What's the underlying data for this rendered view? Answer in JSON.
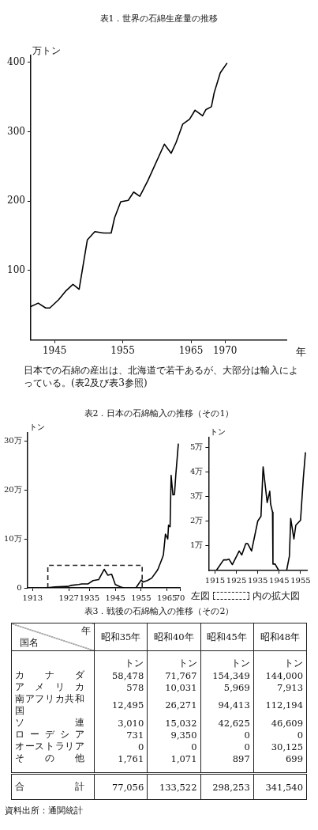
{
  "chart_data": [
    {
      "type": "line",
      "title": "表1．世界の石綿生産量の推移",
      "ylabel": "万トン",
      "xlabel": "年",
      "xlim": [
        1941.5,
        1979
      ],
      "xticks": [
        1945,
        1955,
        1965,
        1970
      ],
      "ylim": [
        0,
        410
      ],
      "yticks": [
        100,
        200,
        300,
        400
      ],
      "series": [
        {
          "color": "#000000",
          "x": [
            1941.5,
            1942.6,
            1943.7,
            1944.3,
            1945.6,
            1946.6,
            1947.7,
            1948.6,
            1949.8,
            1950.9,
            1952.2,
            1953.3,
            1953.8,
            1954.7,
            1955.8,
            1956.6,
            1957.5,
            1958.7,
            1961.1,
            1962.1,
            1962.8,
            1963.8,
            1964.8,
            1965.6,
            1966.7,
            1967.2,
            1968.0,
            1968.4,
            1969.3,
            1970.3
          ],
          "values": [
            48,
            53,
            46,
            46,
            58,
            70,
            80,
            73,
            144,
            156,
            154,
            154,
            176,
            199,
            201,
            213,
            207,
            230,
            282,
            269,
            284,
            311,
            318,
            331,
            323,
            332,
            336,
            356,
            385,
            399
          ]
        }
      ],
      "annotations": [
        "日本での石綿の産出は、北海道で若干あるが、大部分は輸入によっている。(表2及び表3参照)"
      ]
    },
    {
      "type": "line",
      "title": "表2．日本の石綿輸入の推移（その1）",
      "ylabel": "トン",
      "xlim": [
        1911,
        1970
      ],
      "xticks": [
        1913,
        1927,
        1935,
        1945,
        1955,
        1965,
        {
          "value": 1970,
          "label": "70"
        }
      ],
      "ylim": [
        0,
        31.7
      ],
      "yticks": [
        0,
        {
          "value": 10,
          "label": "10万"
        },
        {
          "value": 20,
          "label": "20万"
        },
        {
          "value": 30,
          "label": "30万"
        }
      ],
      "series": [
        {
          "color": "#000000",
          "x": [
            1918.3,
            1921.5,
            1926.6,
            1927.8,
            1930.8,
            1932,
            1934.4,
            1936.4,
            1938.6,
            1940.7,
            1942.1,
            1943.6,
            1945,
            1947,
            1948.3,
            1950.6,
            1953,
            1955,
            1955.8,
            1957.4,
            1959.1,
            1960.9,
            1961.5,
            1962.9,
            1963.6,
            1964.4,
            1965.3,
            1965.6,
            1966.2,
            1966.6,
            1967.3,
            1967.9,
            1968.4,
            1969.4
          ],
          "values": [
            0,
            0.2,
            0.3,
            0.5,
            0.7,
            0.8,
            0.8,
            1.5,
            1.7,
            3.8,
            2.6,
            2.8,
            0.7,
            0.2,
            0,
            null,
            0,
            1.6,
            1.2,
            1.5,
            2,
            3.3,
            3.8,
            5.7,
            6.7,
            11,
            10,
            12.8,
            12.5,
            23,
            19,
            19.1,
            23,
            29.5
          ]
        },
        {
          "color": "#222222",
          "line_style": "dashed",
          "x": [
            1918.9,
            1918.9,
            1955.4,
            1955.4
          ],
          "values": [
            0,
            4.6,
            4.6,
            0
          ]
        }
      ]
    },
    {
      "type": "line",
      "ylabel": "トン",
      "xlim": [
        1912,
        1958
      ],
      "xticks": [
        1915,
        1925,
        1935,
        1945,
        1955
      ],
      "ylim": [
        0,
        5.4
      ],
      "yticks": [
        {
          "value": 1,
          "label": "1万"
        },
        {
          "value": 2,
          "label": "2万"
        },
        {
          "value": 3,
          "label": "3万"
        },
        {
          "value": 4,
          "label": "4万"
        },
        {
          "value": 5,
          "label": "5万"
        }
      ],
      "series": [
        {
          "color": "#000000",
          "x": [
            1915.6,
            1919,
            1920.6,
            1921.5,
            1923.1,
            1926.3,
            1927.5,
            1929.4,
            1930.3,
            1932.1,
            1935,
            1936.5,
            1937.5,
            1939.4,
            1940.6,
            1941,
            1941.9,
            1942.1,
            1943.1,
            1944.8,
            1946.6,
            1948.5,
            1949.8,
            1950.4,
            1951.9,
            1952.8,
            1955,
            1956.3,
            1957.3
          ],
          "values": [
            0,
            0.43,
            0.43,
            0.46,
            0.24,
            0.79,
            0.63,
            1.09,
            1.09,
            0.79,
            2.01,
            2.2,
            4.21,
            2.76,
            3.22,
            2.7,
            2.37,
            0.26,
            0.26,
            0,
            null,
            0,
            0.59,
            2.11,
            1.28,
            1.84,
            2.04,
            3.75,
            4.8
          ]
        }
      ],
      "annotations": [
        "左図",
        "内の拡大図"
      ]
    },
    {
      "type": "other",
      "title": "表3．戦後の石綿輸入の推移（その2）",
      "xlabel": "国名",
      "legend_title": "年",
      "ylabel": "トン",
      "categories": [
        "カナダ",
        "アメリカ",
        "南アフリカ共和国",
        "ソ連",
        "ローデシア",
        "オーストラリア",
        "その他",
        "合計"
      ],
      "series": [
        {
          "name": "昭和35年",
          "values": [
            58478,
            578,
            12495,
            3010,
            731,
            0,
            1761,
            77056
          ],
          "value_labels": [
            "58,478",
            "578",
            "12,495",
            "3,010",
            "731",
            "0",
            "1,761",
            "77,056"
          ]
        },
        {
          "name": "昭和40年",
          "values": [
            71767,
            10031,
            26271,
            15032,
            9350,
            0,
            1071,
            133522
          ],
          "value_labels": [
            "71,767",
            "10,031",
            "26,271",
            "15,032",
            "9,350",
            "0",
            "1,071",
            "133,522"
          ]
        },
        {
          "name": "昭和45年",
          "values": [
            154349,
            5969,
            94413,
            42625,
            0,
            0,
            897,
            298253
          ],
          "value_labels": [
            "154,349",
            "5,969",
            "94,413",
            "42,625",
            "0",
            "0",
            "897",
            "298,253"
          ]
        },
        {
          "name": "昭和48年",
          "values": [
            144000,
            7913,
            112194,
            46609,
            0,
            30125,
            699,
            341540
          ],
          "value_labels": [
            "144,000",
            "7,913",
            "112,194",
            "46,609",
            "0",
            "30,125",
            "699",
            "341,540"
          ]
        }
      ],
      "annotations": [
        "資料出所：通関統計"
      ]
    }
  ]
}
